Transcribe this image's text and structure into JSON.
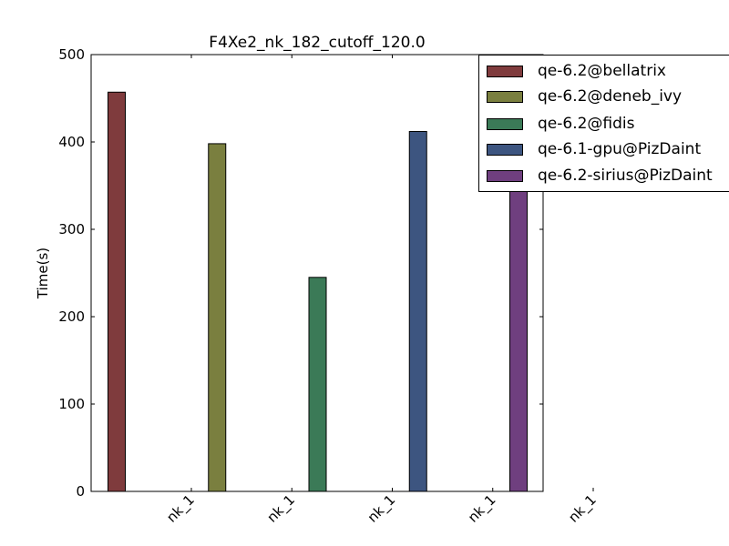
{
  "chart_data": {
    "type": "bar",
    "title": "F4Xe2_nk_182_cutoff_120.0",
    "xlabel": "",
    "ylabel": "Time(s)",
    "ylim": [
      0,
      500
    ],
    "yticks": [
      0,
      100,
      200,
      300,
      400,
      500
    ],
    "categories": [
      "nk_1",
      "nk_1",
      "nk_1",
      "nk_1",
      "nk_1"
    ],
    "grid": false,
    "legend_position": "top-right",
    "series": [
      {
        "name": "qe-6.2@bellatrix",
        "color": "#7f3b3d",
        "values": [
          457,
          null,
          null,
          null,
          null
        ]
      },
      {
        "name": "qe-6.2@deneb_ivy",
        "color": "#7a7f3f",
        "values": [
          null,
          398,
          null,
          null,
          null
        ]
      },
      {
        "name": "qe-6.2@fidis",
        "color": "#3b7a57",
        "values": [
          null,
          null,
          245,
          null,
          null
        ]
      },
      {
        "name": "qe-6.1-gpu@PizDaint",
        "color": "#3d5580",
        "values": [
          null,
          null,
          null,
          412,
          null
        ]
      },
      {
        "name": "qe-6.2-sirius@PizDaint",
        "color": "#6f3f7f",
        "values": [
          null,
          null,
          null,
          null,
          360
        ]
      }
    ]
  }
}
